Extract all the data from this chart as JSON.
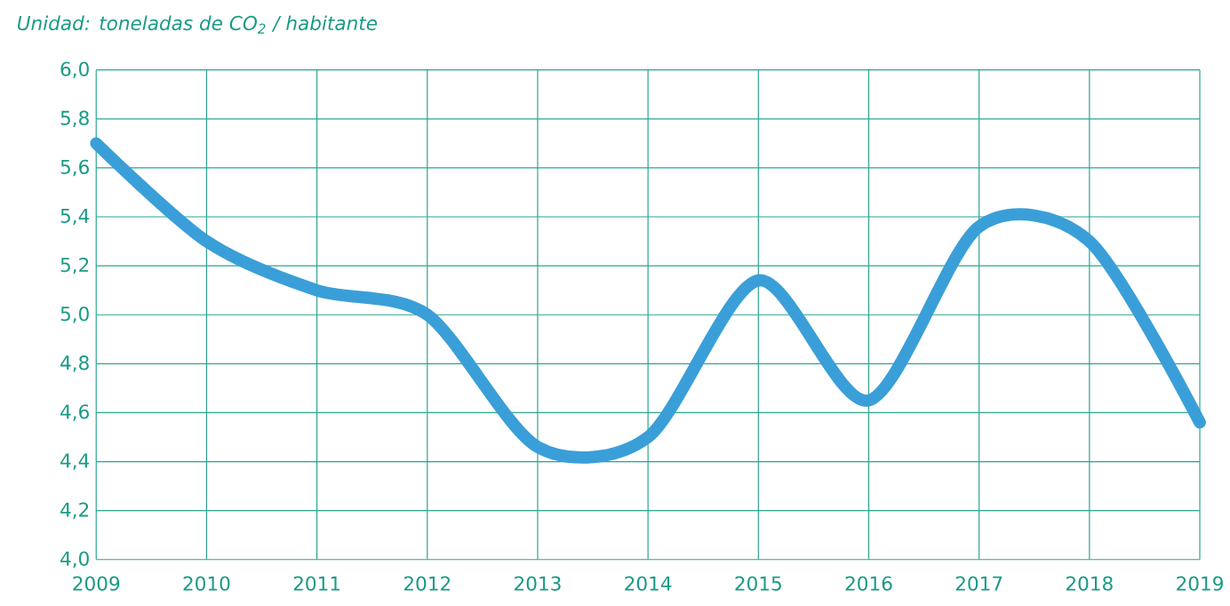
{
  "chart_data": {
    "type": "line",
    "title": "Unidad: toneladas de CO$_{2}$ / habitante",
    "categories": [
      "2009",
      "2010",
      "2011",
      "2012",
      "2013",
      "2014",
      "2015",
      "2016",
      "2017",
      "2018",
      "2019"
    ],
    "series": [
      {
        "color": "#3a9fd8",
        "values": [
          5.7,
          5.3,
          5.1,
          5.0,
          4.46,
          4.5,
          5.14,
          4.65,
          5.36,
          5.3,
          4.56
        ]
      }
    ],
    "ylim": [
      4.0,
      6.0
    ],
    "yticks": [
      {
        "value": 4.0,
        "label": "4,0"
      },
      {
        "value": 4.2,
        "label": "4,2"
      },
      {
        "value": 4.4,
        "label": "4,4"
      },
      {
        "value": 4.6,
        "label": "4,6"
      },
      {
        "value": 4.8,
        "label": "4,8"
      },
      {
        "value": 5.0,
        "label": "5,0"
      },
      {
        "value": 5.2,
        "label": "5,2"
      },
      {
        "value": 5.4,
        "label": "5,4"
      },
      {
        "value": 5.6,
        "label": "5,6"
      },
      {
        "value": 5.8,
        "label": "5,8"
      },
      {
        "value": 6.0,
        "label": "6,0"
      }
    ],
    "grid": true,
    "marker": "none",
    "line_style": "solid"
  }
}
